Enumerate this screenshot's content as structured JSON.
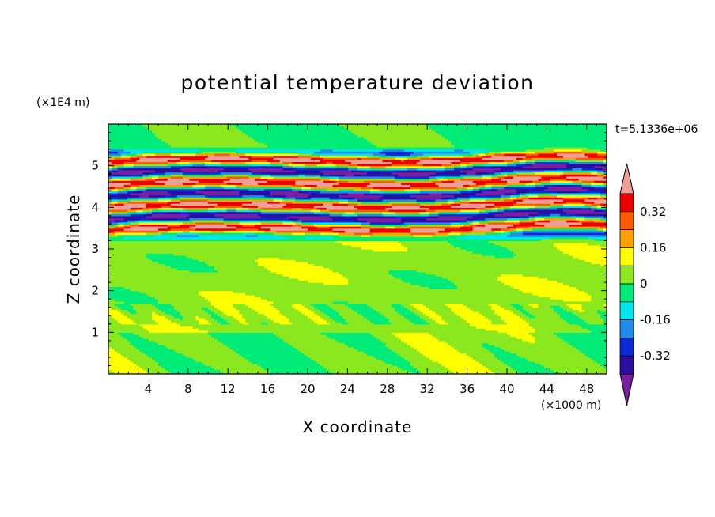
{
  "chart_data": {
    "type": "heatmap",
    "title": "potential temperature deviation",
    "xlabel": "X coordinate",
    "ylabel": "Z coordinate",
    "x_unit": "(×1000 m)",
    "y_unit": "(×1E4 m)",
    "time_label": "t=5.1336e+06",
    "xlim": [
      0,
      50
    ],
    "ylim": [
      0,
      6
    ],
    "x_ticks": [
      4,
      8,
      12,
      16,
      20,
      24,
      28,
      32,
      36,
      40,
      44,
      48
    ],
    "y_ticks": [
      1,
      2,
      3,
      4,
      5
    ],
    "colorbar": {
      "levels": [
        -0.4,
        -0.32,
        -0.24,
        -0.16,
        -0.08,
        0,
        0.08,
        0.16,
        0.24,
        0.32,
        0.4
      ],
      "labels": [
        "0.32",
        "0.16",
        "0",
        "-0.16",
        "-0.32"
      ],
      "label_values": [
        0.32,
        0.16,
        0,
        -0.16,
        -0.32
      ],
      "colors": [
        "#7b1fa0",
        "#2a0fa0",
        "#0a2ad8",
        "#1f8cf0",
        "#00e5ee",
        "#00eb78",
        "#8ce81e",
        "#ffff00",
        "#ffa000",
        "#ff5a00",
        "#ee0000",
        "#ef9f9a"
      ],
      "extend": "both"
    },
    "layers": [
      {
        "z": [
          0.0,
          1.0
        ],
        "value": 0.02,
        "note": "mixed green / light green"
      },
      {
        "z": [
          1.0,
          3.2
        ],
        "value": 0.04
      },
      {
        "z": [
          3.2,
          5.4
        ],
        "value": "oscillating -0.4..0.4"
      },
      {
        "z": [
          5.4,
          6.0
        ],
        "value": -0.02
      }
    ]
  }
}
